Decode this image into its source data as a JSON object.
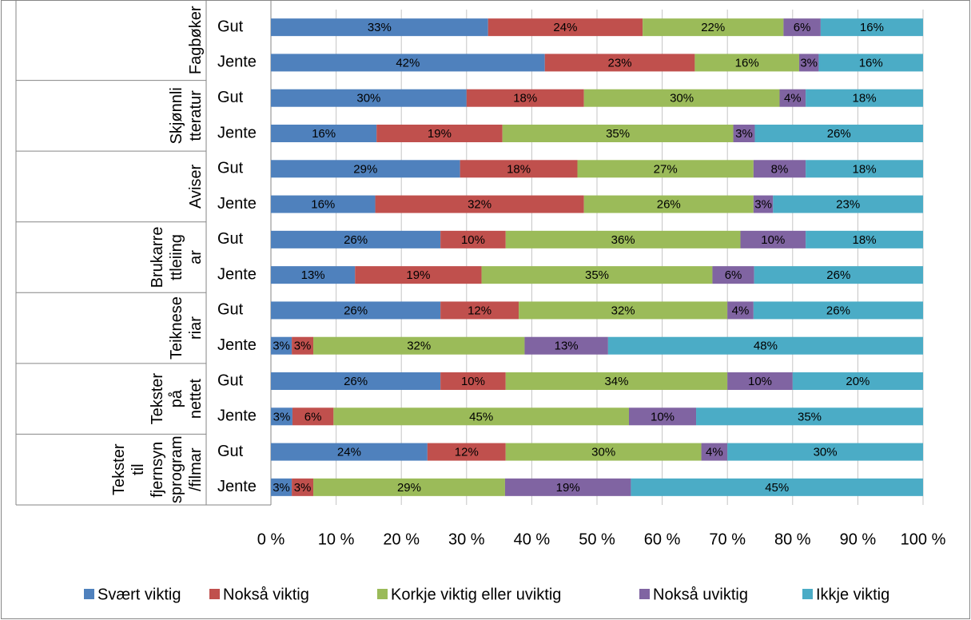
{
  "chart_data": {
    "type": "stacked-bar-horizontal",
    "categories": [
      "Gut",
      "Jente",
      "Gut",
      "Jente",
      "Gut",
      "Jente",
      "Gut",
      "Jente",
      "Gut",
      "Jente",
      "Gut",
      "Jente",
      "Gut",
      "Jente"
    ],
    "groups": [
      "Fagbøker",
      "Skjønnlitteratur",
      "Aviser",
      "Brukarrettleiingar",
      "Teikneseriar",
      "Tekster på nettet",
      "Tekster til fjernsynsprogram/filmar"
    ],
    "series": [
      {
        "name": "Svært viktig",
        "color": "#4f81bd",
        "values": [
          33.3,
          42,
          30,
          16.2,
          29,
          16,
          26,
          12.9,
          26,
          3.2,
          26,
          3.3,
          24,
          3.2
        ],
        "value_labels": [
          "33%",
          "42%",
          "30%",
          "16%",
          "29%",
          "16%",
          "26%",
          "13%",
          "26%",
          "3%",
          "26%",
          "3%",
          "24%",
          "3%"
        ]
      },
      {
        "name": "Nokså viktig",
        "color": "#c0504d",
        "values": [
          23.7,
          23,
          18,
          19.3,
          18,
          32,
          10,
          19.4,
          12,
          3.3,
          10,
          6.3,
          12,
          3.3
        ],
        "value_labels": [
          "24%",
          "23%",
          "18%",
          "19%",
          "18%",
          "32%",
          "10%",
          "19%",
          "12%",
          "3%",
          "10%",
          "6%",
          "12%",
          "3%"
        ]
      },
      {
        "name": "Korkje viktig eller uviktig",
        "color": "#9bbb59",
        "values": [
          21.6,
          16,
          30,
          35.4,
          27,
          26,
          36,
          35.4,
          32,
          32.4,
          34,
          45.3,
          30,
          29.4
        ],
        "value_labels": [
          "22%",
          "16%",
          "30%",
          "35%",
          "27%",
          "26%",
          "36%",
          "35%",
          "32%",
          "32%",
          "34%",
          "45%",
          "30%",
          "29%"
        ]
      },
      {
        "name": "Nokså uviktig",
        "color": "#8064a2",
        "values": [
          5.7,
          3,
          4,
          3.3,
          8,
          3,
          10,
          6.4,
          4,
          12.8,
          10,
          10.3,
          4,
          19.3
        ],
        "value_labels": [
          "6%",
          "3%",
          "4%",
          "3%",
          "8%",
          "3%",
          "10%",
          "6%",
          "4%",
          "13%",
          "10%",
          "10%",
          "4%",
          "19%"
        ]
      },
      {
        "name": "Ikkje viktig",
        "color": "#4bacc6",
        "values": [
          15.7,
          16,
          18,
          25.8,
          18,
          23,
          18,
          25.9,
          26,
          48.3,
          20,
          34.8,
          30,
          44.8
        ],
        "value_labels": [
          "16%",
          "16%",
          "18%",
          "26%",
          "18%",
          "23%",
          "18%",
          "26%",
          "26%",
          "48%",
          "20%",
          "35%",
          "30%",
          "45%"
        ]
      }
    ],
    "xlim": [
      0,
      100
    ],
    "xticks": [
      {
        "value": 0,
        "label": "0 %"
      },
      {
        "value": 10,
        "label": "10 %"
      },
      {
        "value": 20,
        "label": "20 %"
      },
      {
        "value": 30,
        "label": "30 %"
      },
      {
        "value": 40,
        "label": "40 %"
      },
      {
        "value": 50,
        "label": "50 %"
      },
      {
        "value": 60,
        "label": "60 %"
      },
      {
        "value": 70,
        "label": "70 %"
      },
      {
        "value": 80,
        "label": "80 %"
      },
      {
        "value": 90,
        "label": "90 %"
      },
      {
        "value": 100,
        "label": "100 %"
      }
    ],
    "grid": true,
    "legend": "bottom"
  }
}
